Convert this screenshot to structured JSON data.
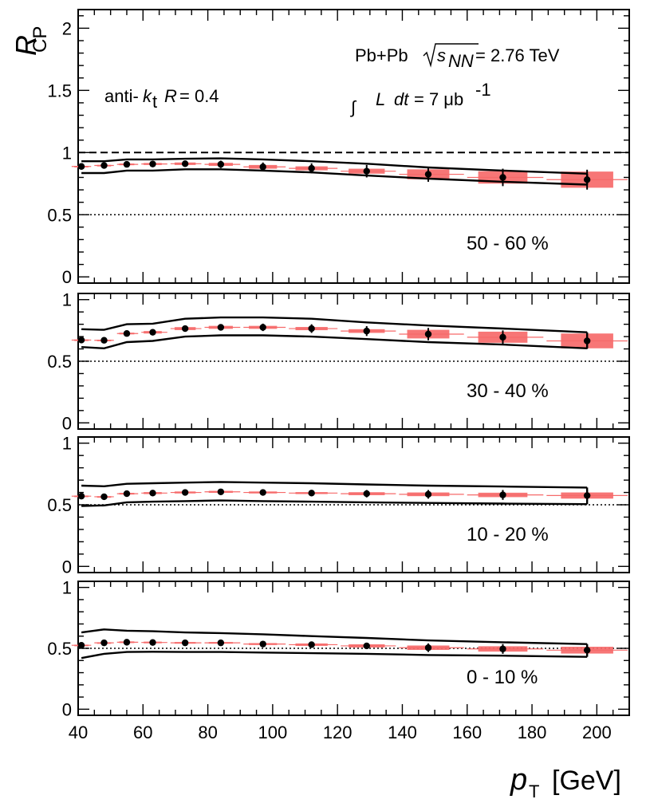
{
  "chart_data": {
    "type": "scatter",
    "x_axis": {
      "range": [
        40,
        210
      ],
      "tick_labels": [
        "40",
        "60",
        "80",
        "100",
        "120",
        "140",
        "160",
        "180",
        "200"
      ]
    },
    "y_label_main": "R",
    "y_label_sub": "CP",
    "x_label_main": "p",
    "x_label_sub": "T",
    "x_label_unit": "[GeV]",
    "annotations": {
      "collision": "Pb+Pb",
      "sqrt_s": "s",
      "sqrt_s_sub": "NN",
      "energy": "= 2.76 TeV",
      "integral_symbol": "∫",
      "lumi_L": "L",
      "lumi_dt": "dt",
      "lumi_value": "= 7 μb",
      "lumi_exp": "-1",
      "algo_prefix": "anti-",
      "algo_k": "k",
      "algo_k_sub": "t",
      "algo_R": "R",
      "algo_value": "= 0.4"
    },
    "x": [
      41,
      48,
      55,
      63,
      73,
      84,
      97,
      112,
      129,
      148,
      171,
      197
    ],
    "panels": [
      {
        "label": "50 - 60 %",
        "ylim": [
          -0.05,
          2.15
        ],
        "y_tick_labels": [
          "0",
          "0.5",
          "1",
          "1.5",
          "2"
        ],
        "y_ticks": [
          0,
          0.5,
          1,
          1.5,
          2
        ],
        "y": [
          0.888,
          0.896,
          0.905,
          0.908,
          0.91,
          0.905,
          0.885,
          0.873,
          0.85,
          0.825,
          0.8,
          0.782
        ],
        "stat_err": [
          0.02,
          0.02,
          0.02,
          0.02,
          0.025,
          0.03,
          0.035,
          0.04,
          0.05,
          0.06,
          0.07,
          0.08
        ],
        "sys_err": [
          0.005,
          0.005,
          0.007,
          0.008,
          0.01,
          0.012,
          0.015,
          0.016,
          0.02,
          0.04,
          0.05,
          0.065
        ],
        "band_upper": [
          0.93,
          0.93,
          0.945,
          0.945,
          0.95,
          0.953,
          0.945,
          0.93,
          0.91,
          0.88,
          0.855,
          0.83
        ],
        "band_lower": [
          0.835,
          0.835,
          0.855,
          0.855,
          0.865,
          0.865,
          0.855,
          0.84,
          0.815,
          0.79,
          0.765,
          0.742
        ],
        "ref_dashed": 1.0,
        "ref_dotted": 0.5
      },
      {
        "label": "30 - 40 %",
        "ylim": [
          -0.05,
          1.05
        ],
        "y_tick_labels": [
          "0",
          "0.5",
          "1"
        ],
        "y_ticks": [
          0,
          0.5,
          1
        ],
        "y": [
          0.672,
          0.67,
          0.725,
          0.735,
          0.765,
          0.775,
          0.775,
          0.765,
          0.745,
          0.72,
          0.695,
          0.665
        ],
        "stat_err": [
          0.02,
          0.02,
          0.02,
          0.02,
          0.02,
          0.025,
          0.03,
          0.035,
          0.04,
          0.05,
          0.055,
          0.065
        ],
        "sys_err": [
          0.005,
          0.005,
          0.007,
          0.01,
          0.012,
          0.012,
          0.012,
          0.013,
          0.015,
          0.035,
          0.045,
          0.06
        ],
        "band_upper": [
          0.76,
          0.755,
          0.8,
          0.805,
          0.845,
          0.855,
          0.855,
          0.845,
          0.815,
          0.79,
          0.765,
          0.735
        ],
        "band_lower": [
          0.615,
          0.605,
          0.655,
          0.665,
          0.7,
          0.71,
          0.71,
          0.7,
          0.68,
          0.655,
          0.635,
          0.605
        ],
        "ref_dotted": 0.5
      },
      {
        "label": "10 - 20 %",
        "ylim": [
          -0.05,
          1.05
        ],
        "y_tick_labels": [
          "0",
          "0.5",
          "1"
        ],
        "y_ticks": [
          0,
          0.5,
          1
        ],
        "y": [
          0.57,
          0.565,
          0.59,
          0.595,
          0.6,
          0.605,
          0.6,
          0.595,
          0.59,
          0.585,
          0.58,
          0.575
        ],
        "stat_err": [
          0.015,
          0.015,
          0.015,
          0.015,
          0.015,
          0.018,
          0.02,
          0.025,
          0.03,
          0.035,
          0.04,
          0.045
        ],
        "sys_err": [
          0.005,
          0.005,
          0.007,
          0.008,
          0.008,
          0.008,
          0.008,
          0.008,
          0.012,
          0.015,
          0.018,
          0.025
        ],
        "band_upper": [
          0.655,
          0.65,
          0.67,
          0.675,
          0.68,
          0.685,
          0.68,
          0.675,
          0.665,
          0.655,
          0.648,
          0.64
        ],
        "band_lower": [
          0.49,
          0.495,
          0.52,
          0.525,
          0.53,
          0.535,
          0.53,
          0.525,
          0.52,
          0.515,
          0.51,
          0.505
        ],
        "ref_dotted": 0.5
      },
      {
        "label": "0 - 10 %",
        "ylim": [
          -0.05,
          1.05
        ],
        "y_tick_labels": [
          "0",
          "0.5",
          "1"
        ],
        "y_ticks": [
          0,
          0.5,
          1
        ],
        "y": [
          0.525,
          0.545,
          0.55,
          0.548,
          0.545,
          0.545,
          0.535,
          0.53,
          0.52,
          0.505,
          0.495,
          0.485
        ],
        "stat_err": [
          0.015,
          0.015,
          0.015,
          0.015,
          0.015,
          0.015,
          0.015,
          0.02,
          0.025,
          0.035,
          0.04,
          0.045
        ],
        "sys_err": [
          0.005,
          0.005,
          0.007,
          0.007,
          0.007,
          0.007,
          0.008,
          0.01,
          0.013,
          0.018,
          0.022,
          0.028
        ],
        "band_upper": [
          0.63,
          0.655,
          0.645,
          0.64,
          0.63,
          0.625,
          0.615,
          0.6,
          0.585,
          0.565,
          0.55,
          0.535
        ],
        "band_lower": [
          0.42,
          0.455,
          0.47,
          0.472,
          0.47,
          0.47,
          0.465,
          0.46,
          0.455,
          0.445,
          0.44,
          0.43
        ],
        "ref_dotted": 0.5
      }
    ]
  }
}
